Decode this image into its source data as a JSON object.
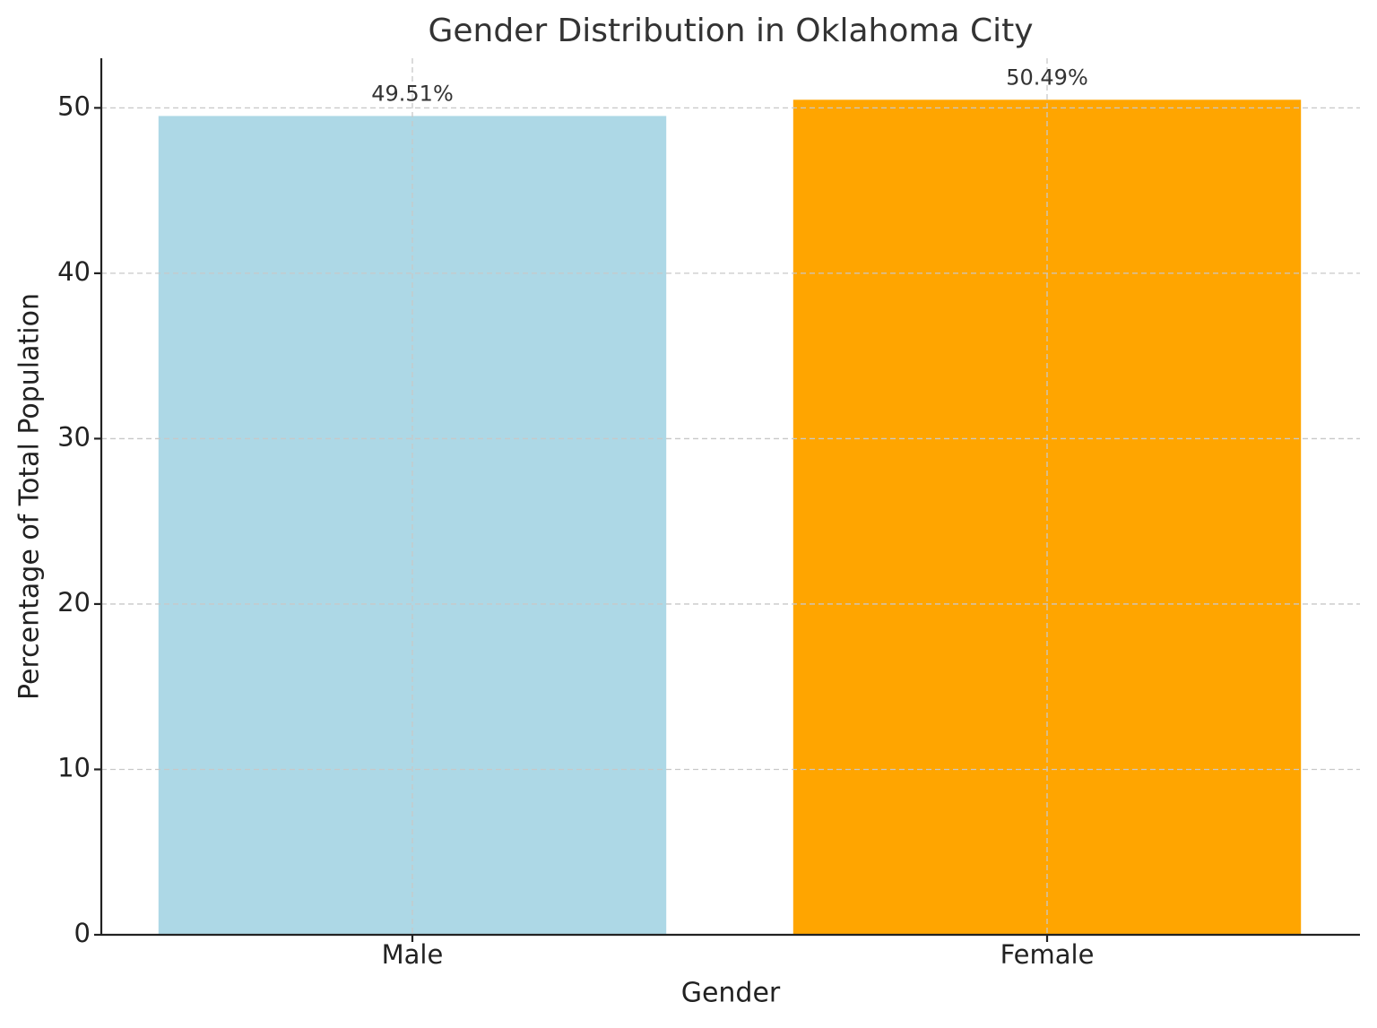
{
  "chart_data": {
    "type": "bar",
    "title": "Gender Distribution in Oklahoma City",
    "x_label": "Gender",
    "y_label": "Percentage of Total Population",
    "categories": [
      "Male",
      "Female"
    ],
    "values": [
      49.51,
      50.49
    ],
    "value_labels": [
      "49.51%",
      "50.49%"
    ],
    "colors": [
      "#add8e6",
      "#ffa500"
    ],
    "ylim": [
      0,
      53
    ],
    "yticks": [
      0,
      10,
      20,
      30,
      40,
      50
    ],
    "grid": true
  }
}
